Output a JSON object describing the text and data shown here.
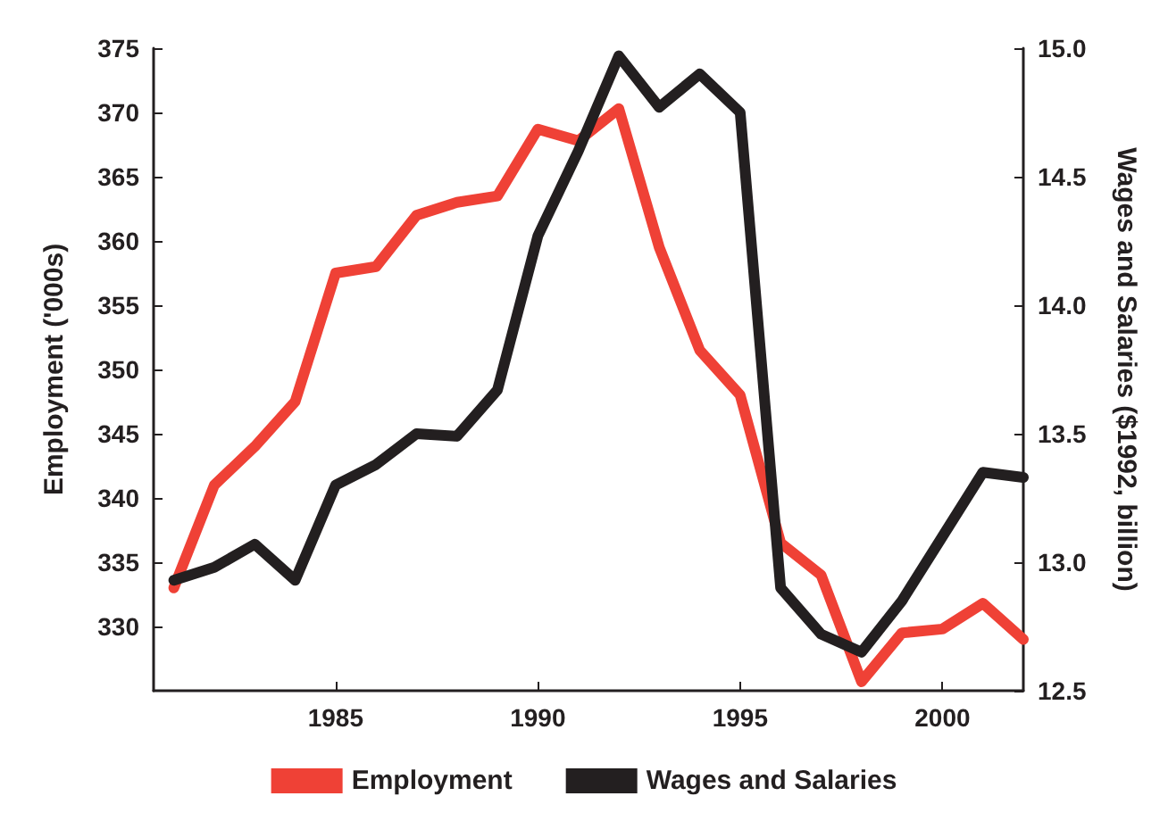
{
  "chart_data": {
    "type": "line",
    "ylabel": "Employment ('000s)",
    "y2label": "Wages and Salaries ($1992, billion)",
    "x": [
      1981,
      1982,
      1983,
      1984,
      1985,
      1986,
      1987,
      1988,
      1989,
      1990,
      1991,
      1992,
      1993,
      1994,
      1995,
      1996,
      1997,
      1998,
      1999,
      2000,
      2001,
      2002
    ],
    "series": [
      {
        "name": "Employment",
        "color": "#ef4136",
        "values": [
          333,
          341,
          344,
          347.5,
          357.5,
          358,
          362,
          363,
          363.5,
          368.7,
          367.8,
          370.3,
          359.5,
          351.5,
          348,
          336.5,
          334,
          325.7,
          329.5,
          329.8,
          331.8,
          329
        ]
      },
      {
        "name": "Wages and Salaries",
        "color": "#231f20",
        "axis": "y2",
        "values": [
          12.93,
          12.98,
          13.07,
          12.93,
          13.3,
          13.38,
          13.5,
          13.49,
          13.67,
          14.27,
          14.6,
          14.97,
          14.77,
          14.9,
          14.75,
          12.9,
          12.72,
          12.65,
          12.85,
          13.1,
          13.35,
          13.33
        ]
      }
    ],
    "xlim": [
      1980.5,
      2002
    ],
    "xticks": [
      1985,
      1990,
      1995,
      2000
    ],
    "ylim": [
      325,
      375
    ],
    "yticks": [
      330,
      335,
      340,
      345,
      350,
      355,
      360,
      365,
      370,
      375
    ],
    "y2lim": [
      12.5,
      15
    ],
    "y2ticks": [
      12.5,
      {
        "value": 13,
        "label": "13.0"
      },
      13.5,
      {
        "value": 14,
        "label": "14.0"
      },
      14.5,
      {
        "value": 15,
        "label": "15.0"
      }
    ],
    "grid": false,
    "legend": "bottom",
    "marker": "none",
    "line_style": "solid"
  }
}
